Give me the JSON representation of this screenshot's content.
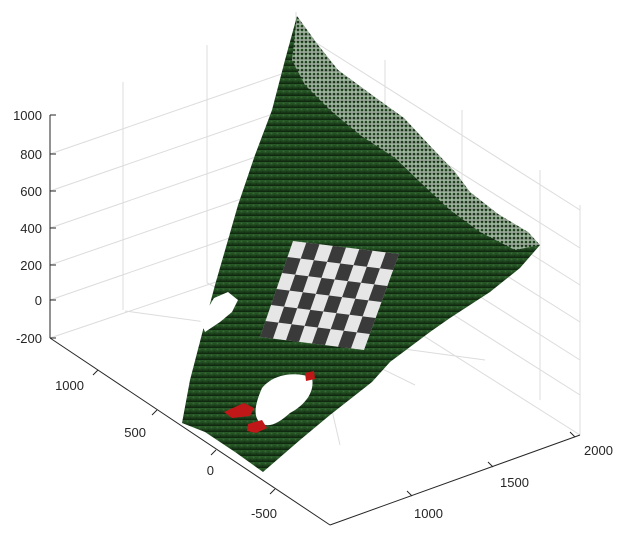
{
  "chart_data": {
    "type": "scatter3d",
    "title": "",
    "xlabel": "",
    "ylabel": "",
    "zlabel": "",
    "grid": true,
    "colors": {
      "ground": "#1f4a1f",
      "ground_dark": "#0d250d",
      "ground_edge": "#2f5f2a",
      "board_light": "#e6e6e6",
      "board_dark": "#3a3a3a",
      "red_object": "#c01818",
      "gap": "#ffffff"
    },
    "z_ticks": [
      "1000",
      "800",
      "600",
      "400",
      "200",
      "0",
      "-200"
    ],
    "y_ticks": [
      "1000",
      "500",
      "0",
      "-500"
    ],
    "x_ticks": [
      "2000",
      "1500",
      "1000"
    ],
    "surface_corners_xyz": [
      {
        "x": 500,
        "y": 1000,
        "z": 1000
      },
      {
        "x": 2000,
        "y": 600,
        "z": 300
      },
      {
        "x": 1000,
        "y": -400,
        "z": -300
      },
      {
        "x": 600,
        "y": 250,
        "z": -250
      }
    ],
    "objects": [
      {
        "name": "checkerboard",
        "squares": 12
      },
      {
        "name": "red-objects",
        "count": 3
      }
    ]
  }
}
